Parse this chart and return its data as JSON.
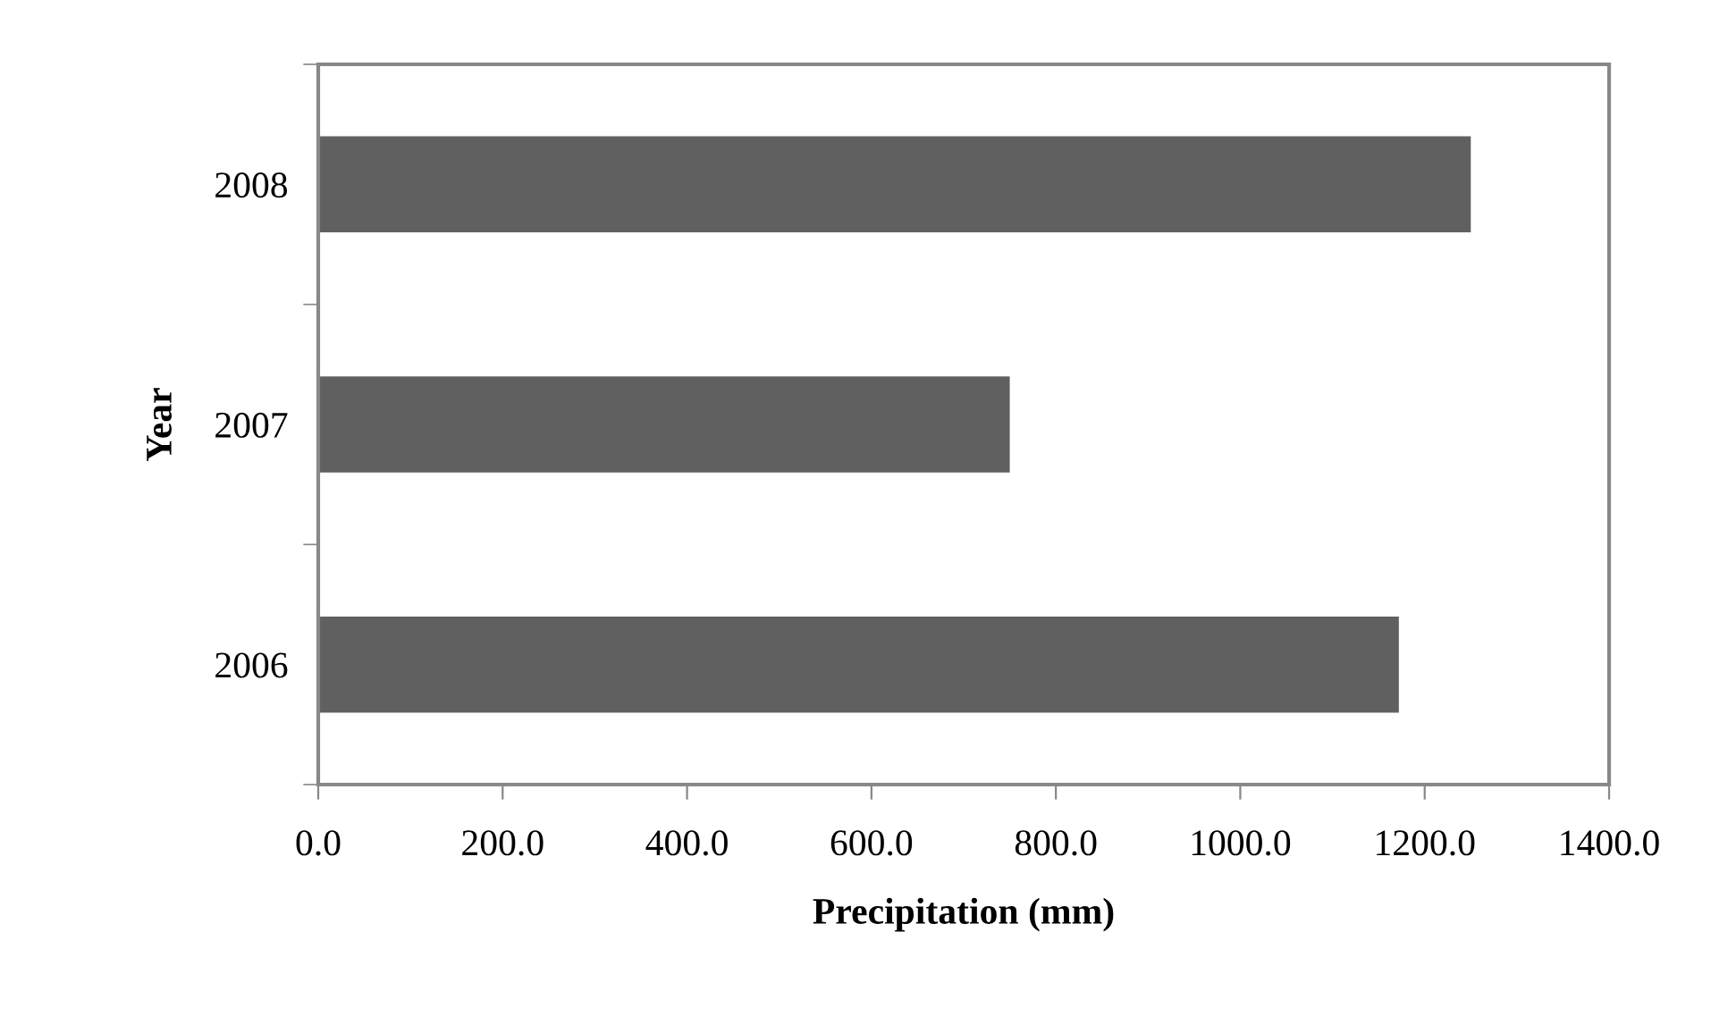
{
  "chart_data": {
    "type": "bar",
    "orientation": "horizontal",
    "xlabel": "Precipitation (mm)",
    "ylabel": "Year",
    "categories": [
      "2008",
      "2007",
      "2006"
    ],
    "values": [
      1250,
      750,
      1172
    ],
    "color": "#606060",
    "xlim": [
      0,
      1400
    ],
    "xticks": [
      {
        "value": 0,
        "label": "0.0"
      },
      {
        "value": 200,
        "label": "200.0"
      },
      {
        "value": 400,
        "label": "400.0"
      },
      {
        "value": 600,
        "label": "600.0"
      },
      {
        "value": 800,
        "label": "800.0"
      },
      {
        "value": 1000,
        "label": "1000.0"
      },
      {
        "value": 1200,
        "label": "1200.0"
      },
      {
        "value": 1400,
        "label": "1400.0"
      }
    ],
    "grid": false,
    "legend": false
  }
}
